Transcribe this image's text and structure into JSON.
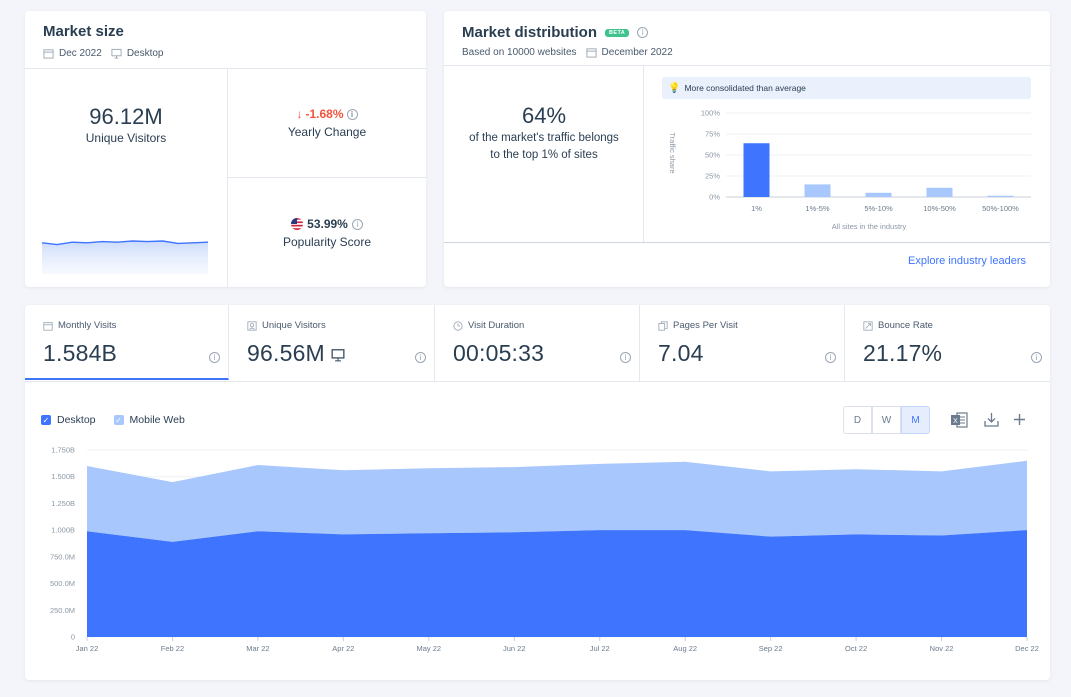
{
  "market_size": {
    "title": "Market size",
    "date": "Dec 2022",
    "device": "Desktop",
    "unique_visitors_value": "96.12M",
    "unique_visitors_label": "Unique Visitors",
    "yearly_change_value": "-1.68%",
    "yearly_change_label": "Yearly Change",
    "popularity_value": "53.99%",
    "popularity_label": "Popularity Score",
    "sparkline": [
      0.52,
      0.49,
      0.53,
      0.52,
      0.54,
      0.53,
      0.55,
      0.54,
      0.55,
      0.51,
      0.52,
      0.53
    ]
  },
  "market_distribution": {
    "title": "Market distribution",
    "badge": "BETA",
    "based_on": "Based on 10000 websites",
    "date": "December 2022",
    "share_value": "64%",
    "share_text": "of the market's traffic belongs to the top 1% of sites",
    "hint": "More consolidated than average",
    "explore_link": "Explore industry leaders",
    "chart_data": {
      "type": "bar",
      "categories": [
        "1%",
        "1%-5%",
        "5%-10%",
        "10%-50%",
        "50%-100%"
      ],
      "values": [
        64,
        15,
        5,
        11,
        1.5
      ],
      "ylabel": "Traffic share",
      "xlabel": "All sites in the industry",
      "ylim": [
        0,
        100
      ],
      "yticks": [
        "0%",
        "25%",
        "50%",
        "75%",
        "100%"
      ],
      "colors": [
        "#3e74fe",
        "#a8c7fd",
        "#a8c7fd",
        "#a8c7fd",
        "#a8c7fd"
      ]
    }
  },
  "kpis": [
    {
      "icon": "calendar-icon",
      "label": "Monthly Visits",
      "value": "1.584B",
      "active": true
    },
    {
      "icon": "person-icon",
      "label": "Unique Visitors",
      "value": "96.56M",
      "active": false
    },
    {
      "icon": "clock-icon",
      "label": "Visit Duration",
      "value": "00:05:33",
      "active": false
    },
    {
      "icon": "pages-icon",
      "label": "Pages Per Visit",
      "value": "7.04",
      "active": false
    },
    {
      "icon": "bounce-icon",
      "label": "Bounce Rate",
      "value": "21.17%",
      "active": false
    }
  ],
  "visits_chart": {
    "legend": [
      {
        "label": "Desktop",
        "color": "#3e74fe",
        "checked": true
      },
      {
        "label": "Mobile Web",
        "color": "#a8c7fd",
        "checked": true
      }
    ],
    "granularity": [
      "D",
      "W",
      "M"
    ],
    "selected_granularity": "M",
    "chart_data": {
      "type": "area",
      "stacked": true,
      "x": [
        "Jan 22",
        "Feb 22",
        "Mar 22",
        "Apr 22",
        "May 22",
        "Jun 22",
        "Jul 22",
        "Aug 22",
        "Sep 22",
        "Oct 22",
        "Nov 22",
        "Dec 22"
      ],
      "series": [
        {
          "name": "Desktop",
          "values": [
            0.99,
            0.89,
            0.99,
            0.96,
            0.97,
            0.98,
            1.0,
            1.0,
            0.94,
            0.96,
            0.95,
            1.0
          ]
        },
        {
          "name": "Mobile Web",
          "values": [
            0.61,
            0.56,
            0.62,
            0.6,
            0.61,
            0.61,
            0.62,
            0.64,
            0.61,
            0.61,
            0.6,
            0.65
          ]
        }
      ],
      "yticks": [
        "0",
        "250.0M",
        "500.0M",
        "750.0M",
        "1.000B",
        "1.250B",
        "1.500B",
        "1.750B"
      ],
      "ylim": [
        0,
        1.75
      ],
      "colors": [
        "#3e74fe",
        "#a8c7fd"
      ]
    }
  }
}
